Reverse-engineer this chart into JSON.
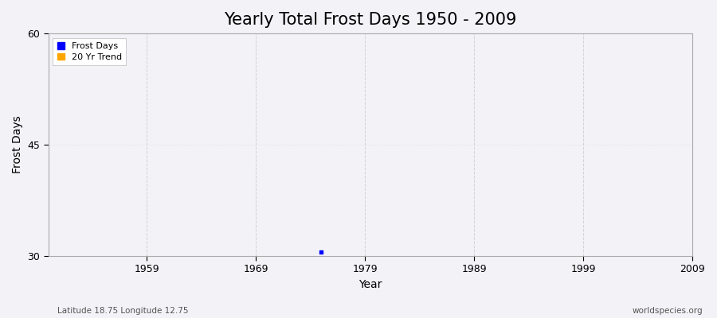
{
  "title": "Yearly Total Frost Days 1950 - 2009",
  "xlabel": "Year",
  "ylabel": "Frost Days",
  "xlim": [
    1950,
    2009
  ],
  "ylim": [
    30,
    60
  ],
  "yticks": [
    30,
    45,
    60
  ],
  "xticks": [
    1959,
    1969,
    1979,
    1989,
    1999,
    2009
  ],
  "data_points": [
    [
      1975,
      30.5
    ]
  ],
  "data_color": "#0000ff",
  "trend_color": "#ffa500",
  "background_color": "#f2f2f7",
  "grid_color_v": "#cccccc",
  "grid_color_h": "#dddddd",
  "legend_labels": [
    "Frost Days",
    "20 Yr Trend"
  ],
  "legend_colors": [
    "#0000ff",
    "#ffa500"
  ],
  "subtitle_left": "Latitude 18.75 Longitude 12.75",
  "subtitle_right": "worldspecies.org",
  "title_fontsize": 15,
  "label_fontsize": 10,
  "tick_fontsize": 9,
  "figsize": [
    9.0,
    4.0
  ],
  "dpi": 100
}
